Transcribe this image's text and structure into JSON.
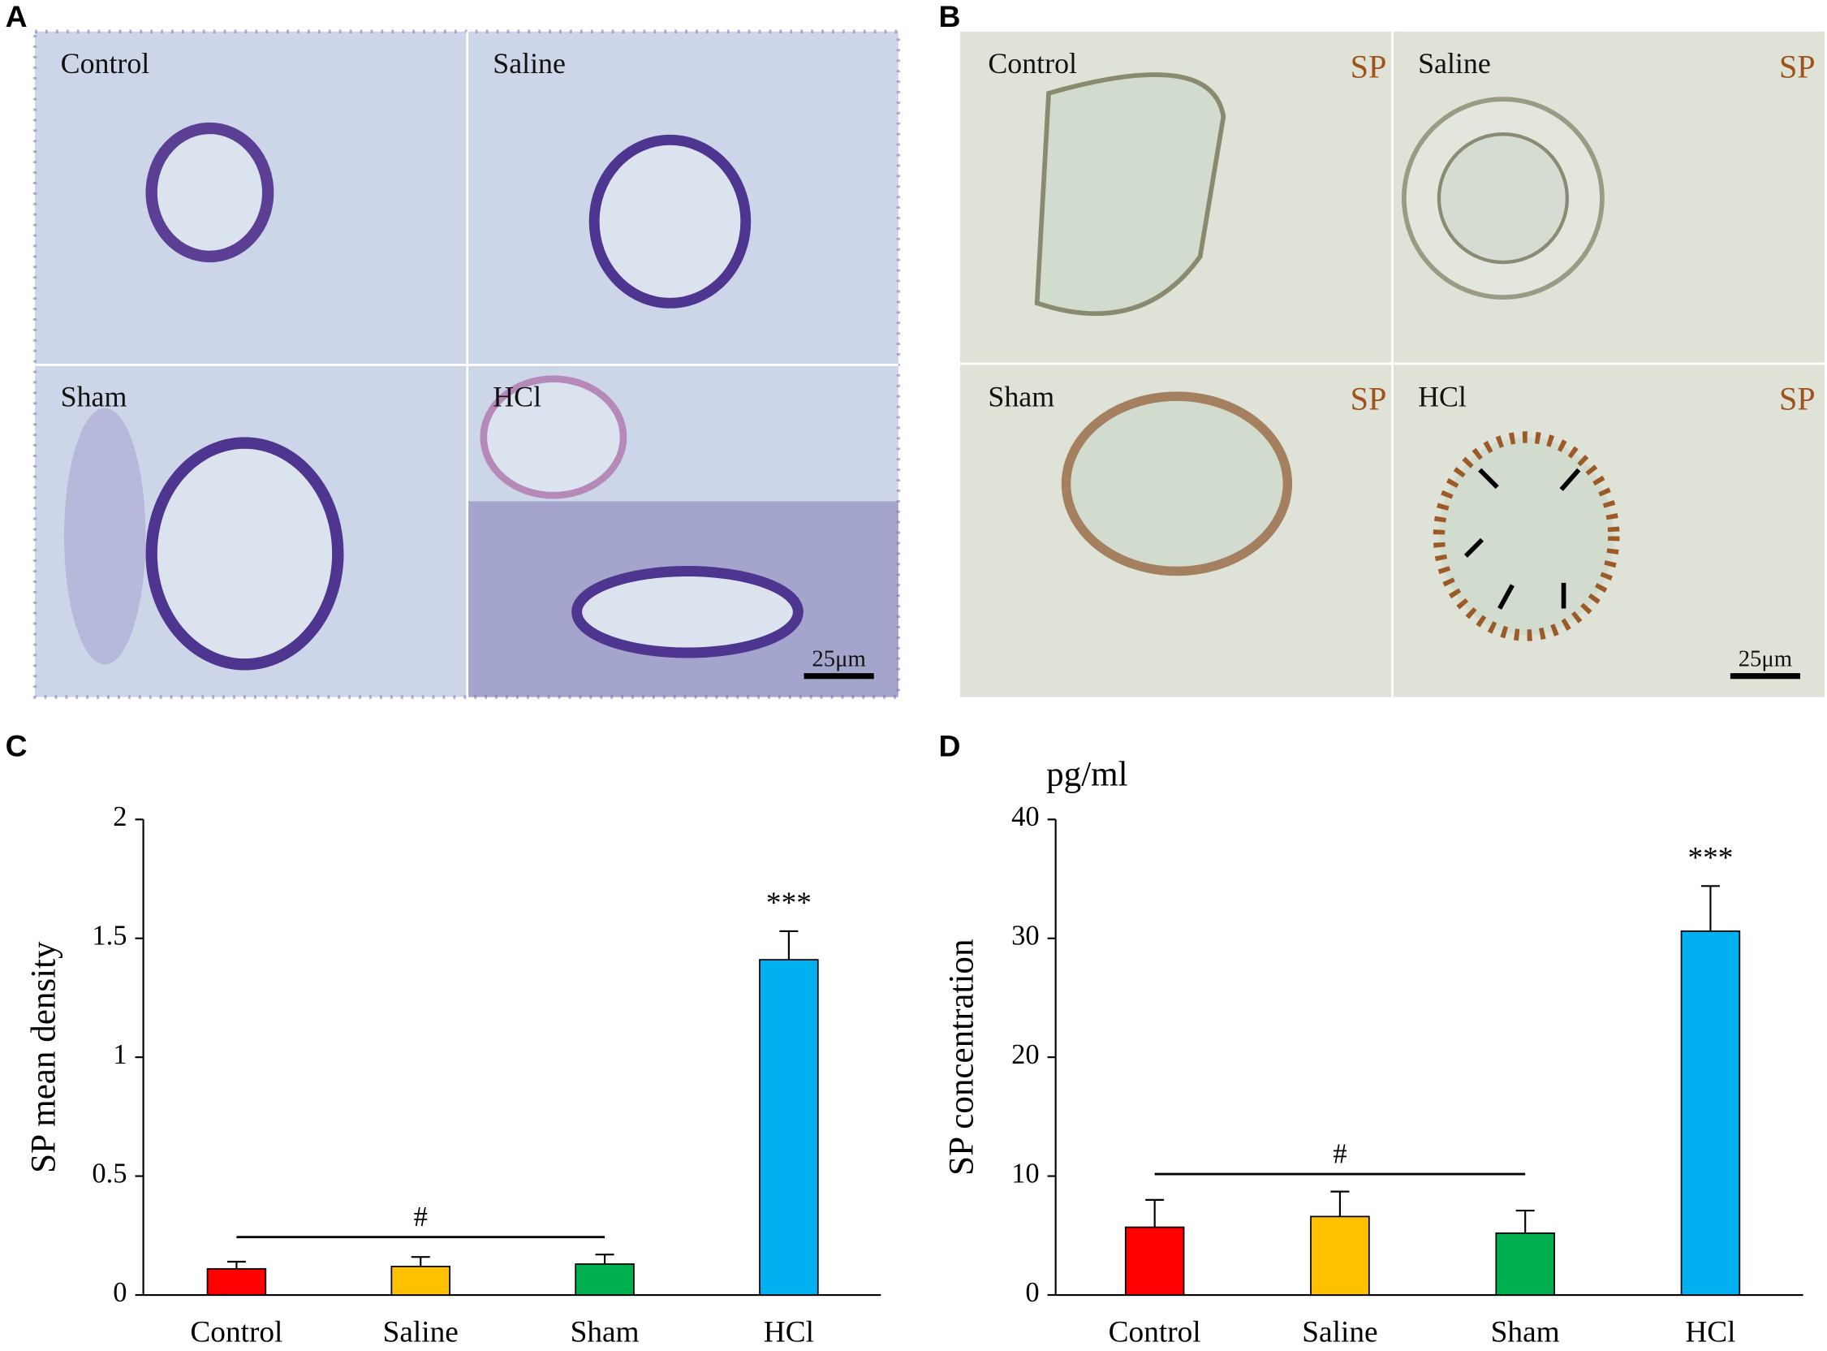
{
  "micrographs": {
    "A": {
      "label": "A",
      "images": [
        {
          "label": "Control"
        },
        {
          "label": "Saline"
        },
        {
          "label": "Sham"
        },
        {
          "label": "HCl"
        }
      ],
      "scale_bar": "25μm"
    },
    "B": {
      "label": "B",
      "images": [
        {
          "label": "Control"
        },
        {
          "label": "Saline"
        },
        {
          "label": "Sham"
        },
        {
          "label": "HCl"
        }
      ],
      "stain": "SP",
      "scale_bar": "25μm"
    }
  },
  "chart_data": [
    {
      "type": "bar",
      "panel_label": "C",
      "ylabel": "SP mean density",
      "categories": [
        "Control",
        "Saline",
        "Sham",
        "HCl"
      ],
      "values": [
        0.11,
        0.12,
        0.13,
        1.41
      ],
      "errors": [
        0.03,
        0.04,
        0.04,
        0.12
      ],
      "colors": [
        "#ff0000",
        "#ffc000",
        "#00b050",
        "#00b0f0"
      ],
      "ylim": [
        0,
        2
      ],
      "yticks": [
        0,
        0.5,
        1,
        1.5,
        2
      ],
      "bracket_label": "#",
      "star_labels": [
        null,
        null,
        null,
        "***"
      ]
    },
    {
      "type": "bar",
      "panel_label": "D",
      "ylabel": "SP concentration",
      "unit": "pg/ml",
      "categories": [
        "Control",
        "Saline",
        "Sham",
        "HCl"
      ],
      "values": [
        5.7,
        6.6,
        5.2,
        30.6
      ],
      "errors": [
        2.3,
        2.1,
        1.9,
        3.8
      ],
      "colors": [
        "#ff0000",
        "#ffc000",
        "#00b050",
        "#00b0f0"
      ],
      "ylim": [
        0,
        40
      ],
      "yticks": [
        0,
        10,
        20,
        30,
        40
      ],
      "bracket_label": "#",
      "star_labels": [
        null,
        null,
        null,
        "***"
      ]
    }
  ]
}
